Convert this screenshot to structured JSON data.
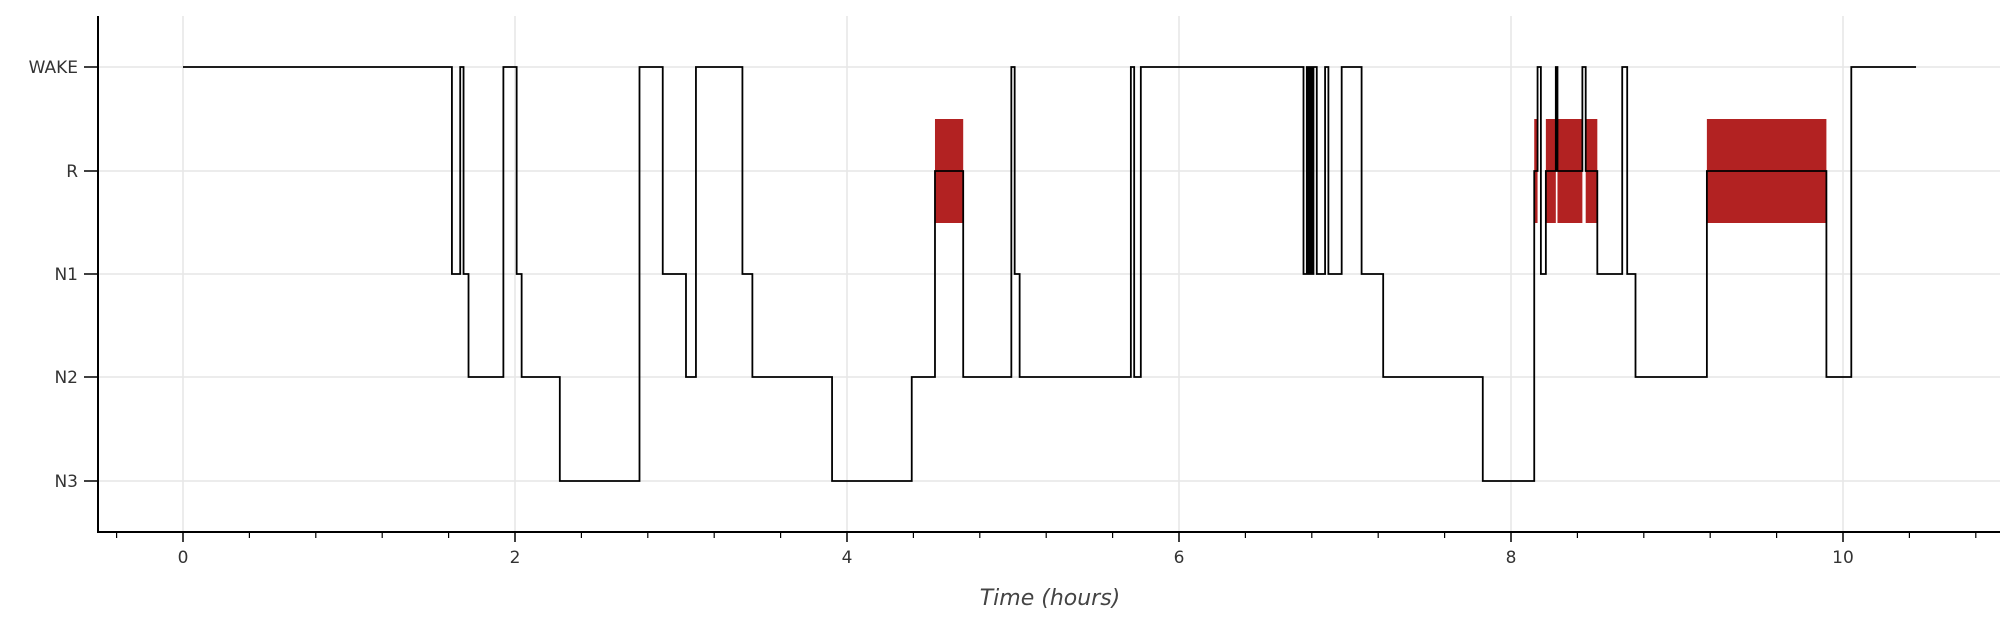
{
  "chart_data": {
    "type": "line",
    "subtype": "hypnogram",
    "title": "",
    "xlabel": "Time (hours)",
    "ylabel": "",
    "xlim": [
      -0.52,
      10.95
    ],
    "x_ticks": [
      0,
      2,
      4,
      6,
      8,
      10
    ],
    "x_tick_labels": [
      "0",
      "2",
      "4",
      "6",
      "8",
      "10"
    ],
    "x_minor_step": 0.4,
    "y_categories": [
      "N3",
      "N2",
      "N1",
      "R",
      "WAKE"
    ],
    "grid": true,
    "colors": {
      "hypnogram": "#000000",
      "rem": "#b22222",
      "grid": "#e6e6e6",
      "axis": "#000000"
    },
    "series": [
      {
        "steps": [
          [
            0.0,
            "WAKE"
          ],
          [
            1.62,
            "N1"
          ],
          [
            1.67,
            "WAKE"
          ],
          [
            1.69,
            "N1"
          ],
          [
            1.72,
            "N2"
          ],
          [
            1.93,
            "WAKE"
          ],
          [
            2.01,
            "N1"
          ],
          [
            2.04,
            "N2"
          ],
          [
            2.27,
            "N3"
          ],
          [
            2.75,
            "WAKE"
          ],
          [
            2.89,
            "N1"
          ],
          [
            3.03,
            "N2"
          ],
          [
            3.09,
            "WAKE"
          ],
          [
            3.37,
            "N1"
          ],
          [
            3.43,
            "N2"
          ],
          [
            3.91,
            "N3"
          ],
          [
            4.39,
            "N2"
          ],
          [
            4.53,
            "R"
          ],
          [
            4.7,
            "N2"
          ],
          [
            4.99,
            "WAKE"
          ],
          [
            5.01,
            "N1"
          ],
          [
            5.04,
            "N2"
          ],
          [
            5.71,
            "WAKE"
          ],
          [
            5.73,
            "N2"
          ],
          [
            5.77,
            "WAKE"
          ],
          [
            6.75,
            "N1"
          ],
          [
            6.77,
            "WAKE"
          ],
          [
            6.78,
            "N1"
          ],
          [
            6.79,
            "WAKE"
          ],
          [
            6.8,
            "N1"
          ],
          [
            6.81,
            "WAKE"
          ],
          [
            6.83,
            "N1"
          ],
          [
            6.88,
            "WAKE"
          ],
          [
            6.9,
            "N1"
          ],
          [
            6.98,
            "WAKE"
          ],
          [
            7.1,
            "N1"
          ],
          [
            7.23,
            "N2"
          ],
          [
            7.83,
            "N3"
          ],
          [
            8.14,
            "R"
          ],
          [
            8.16,
            "WAKE"
          ],
          [
            8.18,
            "N1"
          ],
          [
            8.21,
            "R"
          ],
          [
            8.27,
            "WAKE"
          ],
          [
            8.28,
            "R"
          ],
          [
            8.43,
            "WAKE"
          ],
          [
            8.45,
            "R"
          ],
          [
            8.52,
            "N1"
          ],
          [
            8.67,
            "WAKE"
          ],
          [
            8.7,
            "N1"
          ],
          [
            8.75,
            "N2"
          ],
          [
            9.18,
            "R"
          ],
          [
            9.9,
            "N2"
          ],
          [
            10.05,
            "WAKE"
          ],
          [
            10.44,
            "WAKE"
          ]
        ]
      }
    ],
    "rem_periods": [
      [
        4.53,
        4.7
      ],
      [
        8.14,
        8.16
      ],
      [
        8.21,
        8.27
      ],
      [
        8.28,
        8.43
      ],
      [
        8.45,
        8.52
      ],
      [
        9.18,
        9.9
      ]
    ]
  }
}
